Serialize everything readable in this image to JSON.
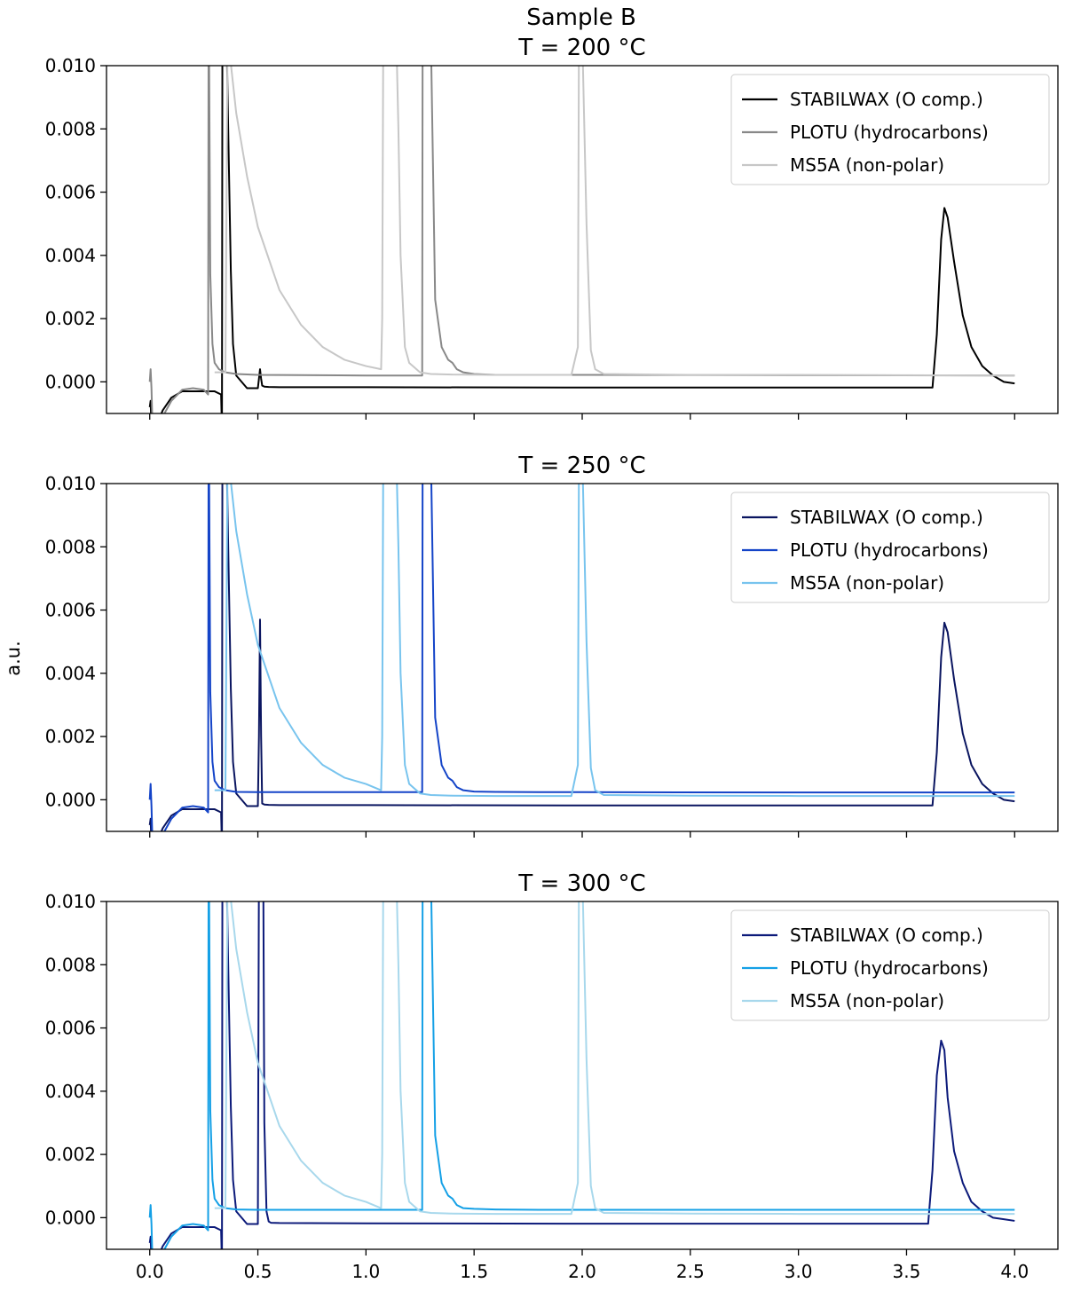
{
  "figure": {
    "suptitle": "Sample B",
    "ylabel": "a.u."
  },
  "chart_data": [
    {
      "type": "line",
      "title": "T = 200 °C",
      "xlim": [
        -0.2,
        4.2
      ],
      "ylim": [
        -0.001,
        0.01
      ],
      "xticks": [
        0.0,
        0.5,
        1.0,
        1.5,
        2.0,
        2.5,
        3.0,
        3.5,
        4.0
      ],
      "xtick_labels": [
        "0.0",
        "0.5",
        "1.0",
        "1.5",
        "2.0",
        "2.5",
        "3.0",
        "3.5",
        "4.0"
      ],
      "yticks": [
        0.0,
        0.002,
        0.004,
        0.006,
        0.008,
        0.01
      ],
      "ytick_labels": [
        "0.000",
        "0.002",
        "0.004",
        "0.006",
        "0.008",
        "0.010"
      ],
      "show_xtick_labels": false,
      "legend_position": "top-right",
      "series": [
        {
          "name": "STABILWAX (O comp.)",
          "color": "#000000",
          "x": [
            0,
            0.004,
            0.008,
            0.03,
            0.06,
            0.1,
            0.15,
            0.2,
            0.25,
            0.3,
            0.33,
            0.334,
            0.336,
            0.34,
            0.345,
            0.355,
            0.365,
            0.375,
            0.385,
            0.4,
            0.45,
            0.5,
            0.505,
            0.51,
            0.515,
            0.52,
            0.53,
            0.55,
            0.6,
            1.0,
            2.0,
            3.0,
            3.6,
            3.62,
            3.64,
            3.66,
            3.675,
            3.69,
            3.72,
            3.76,
            3.8,
            3.85,
            3.9,
            3.95,
            4.0
          ],
          "y": [
            -0.0008,
            -0.0006,
            -0.0015,
            -0.0014,
            -0.0009,
            -0.0005,
            -0.0003,
            -0.0003,
            -0.0003,
            -0.0003,
            -0.0004,
            -0.0015,
            0.011,
            0.011,
            0.011,
            0.011,
            0.0072,
            0.0035,
            0.0012,
            0.0002,
            -0.0002,
            -0.0002,
            0.0001,
            0.0004,
            0.0001,
            -0.00012,
            -0.00015,
            -0.00016,
            -0.00017,
            -0.00017,
            -0.00018,
            -0.00018,
            -0.00018,
            -0.00018,
            0.0015,
            0.0045,
            0.0055,
            0.0052,
            0.0038,
            0.0021,
            0.0011,
            0.0005,
            0.0002,
            0.0,
            -5e-05
          ]
        },
        {
          "name": "PLOTU (hydrocarbons)",
          "color": "#888888",
          "x": [
            0,
            0.004,
            0.008,
            0.012,
            0.03,
            0.06,
            0.1,
            0.15,
            0.2,
            0.25,
            0.27,
            0.272,
            0.274,
            0.28,
            0.29,
            0.3,
            0.32,
            0.35,
            0.4,
            0.5,
            1.0,
            1.26,
            1.262,
            1.264,
            1.27,
            1.3,
            1.32,
            1.35,
            1.38,
            1.4,
            1.41,
            1.42,
            1.45,
            1.5,
            1.6,
            1.8,
            2.0,
            3.0,
            4.0
          ],
          "y": [
            0.0,
            0.0004,
            -0.0002,
            -0.0012,
            -0.0015,
            -0.0011,
            -0.0006,
            -0.00025,
            -0.0002,
            -0.00025,
            -0.0004,
            0.011,
            0.011,
            0.0034,
            0.0012,
            0.0006,
            0.0004,
            0.0003,
            0.00025,
            0.00022,
            0.0002,
            0.0002,
            0.011,
            0.011,
            0.011,
            0.011,
            0.0026,
            0.0011,
            0.0007,
            0.0006,
            0.0005,
            0.0004,
            0.0003,
            0.00025,
            0.00022,
            0.00022,
            0.00022,
            0.00021,
            0.0002
          ]
        },
        {
          "name": "MS5A (non-polar)",
          "color": "#c7c7c7",
          "x": [
            0.3,
            0.35,
            0.36,
            0.4,
            0.45,
            0.5,
            0.6,
            0.7,
            0.8,
            0.9,
            1.0,
            1.07,
            1.075,
            1.08,
            1.09,
            1.1,
            1.13,
            1.14,
            1.15,
            1.16,
            1.18,
            1.2,
            1.25,
            1.3,
            1.4,
            1.6,
            1.8,
            1.95,
            1.98,
            1.985,
            1.995,
            2.0,
            2.02,
            2.04,
            2.06,
            2.1,
            2.5,
            3.0,
            3.5,
            4.0
          ],
          "y": [
            0.0003,
            0.0003,
            0.011,
            0.0085,
            0.0065,
            0.0049,
            0.0029,
            0.0018,
            0.0011,
            0.0007,
            0.0005,
            0.0004,
            0.002,
            0.011,
            0.011,
            0.011,
            0.011,
            0.011,
            0.008,
            0.004,
            0.0011,
            0.0006,
            0.0003,
            0.00025,
            0.00023,
            0.00022,
            0.00022,
            0.00022,
            0.0011,
            0.011,
            0.011,
            0.011,
            0.005,
            0.001,
            0.0004,
            0.00025,
            0.00022,
            0.00022,
            0.00021,
            0.0002
          ]
        }
      ]
    },
    {
      "type": "line",
      "title": "T = 250 °C",
      "xlim": [
        -0.2,
        4.2
      ],
      "ylim": [
        -0.001,
        0.01
      ],
      "xticks": [
        0.0,
        0.5,
        1.0,
        1.5,
        2.0,
        2.5,
        3.0,
        3.5,
        4.0
      ],
      "xtick_labels": [
        "0.0",
        "0.5",
        "1.0",
        "1.5",
        "2.0",
        "2.5",
        "3.0",
        "3.5",
        "4.0"
      ],
      "yticks": [
        0.0,
        0.002,
        0.004,
        0.006,
        0.008,
        0.01
      ],
      "ytick_labels": [
        "0.000",
        "0.002",
        "0.004",
        "0.006",
        "0.008",
        "0.010"
      ],
      "show_xtick_labels": false,
      "legend_position": "top-right",
      "series": [
        {
          "name": "STABILWAX (O comp.)",
          "color": "#0a1560",
          "x": [
            0,
            0.004,
            0.008,
            0.03,
            0.06,
            0.1,
            0.15,
            0.2,
            0.25,
            0.3,
            0.33,
            0.334,
            0.336,
            0.34,
            0.345,
            0.355,
            0.365,
            0.375,
            0.385,
            0.4,
            0.45,
            0.5,
            0.505,
            0.51,
            0.515,
            0.52,
            0.53,
            0.55,
            0.6,
            1.0,
            2.0,
            3.0,
            3.6,
            3.62,
            3.64,
            3.66,
            3.675,
            3.69,
            3.72,
            3.76,
            3.8,
            3.85,
            3.9,
            3.95,
            4.0
          ],
          "y": [
            -0.0008,
            -0.0006,
            -0.0015,
            -0.0014,
            -0.0009,
            -0.0005,
            -0.0003,
            -0.0003,
            -0.0003,
            -0.0003,
            -0.0004,
            -0.0015,
            0.011,
            0.011,
            0.011,
            0.011,
            0.0072,
            0.0035,
            0.0012,
            0.0002,
            -0.0002,
            -0.0002,
            0.002,
            0.0057,
            0.002,
            -0.00012,
            -0.00015,
            -0.00016,
            -0.00017,
            -0.00017,
            -0.00018,
            -0.00018,
            -0.00018,
            -0.00018,
            0.0015,
            0.0045,
            0.0056,
            0.0053,
            0.0038,
            0.0021,
            0.0011,
            0.0005,
            0.0002,
            0.0,
            -5e-05
          ]
        },
        {
          "name": "PLOTU (hydrocarbons)",
          "color": "#1444c8",
          "x": [
            0,
            0.004,
            0.008,
            0.012,
            0.03,
            0.06,
            0.1,
            0.15,
            0.2,
            0.25,
            0.27,
            0.272,
            0.274,
            0.28,
            0.29,
            0.3,
            0.32,
            0.35,
            0.4,
            0.5,
            1.0,
            1.26,
            1.262,
            1.264,
            1.27,
            1.3,
            1.32,
            1.35,
            1.38,
            1.4,
            1.41,
            1.42,
            1.45,
            1.5,
            1.6,
            1.8,
            2.0,
            3.0,
            4.0
          ],
          "y": [
            0.0,
            0.0005,
            -0.0002,
            -0.0012,
            -0.0015,
            -0.0011,
            -0.0006,
            -0.00025,
            -0.0002,
            -0.00025,
            -0.0004,
            0.011,
            0.011,
            0.0034,
            0.0012,
            0.0006,
            0.0004,
            0.0003,
            0.00025,
            0.00024,
            0.00024,
            0.00024,
            0.011,
            0.011,
            0.011,
            0.011,
            0.0026,
            0.0011,
            0.0007,
            0.0006,
            0.0005,
            0.0004,
            0.0003,
            0.00026,
            0.00025,
            0.00024,
            0.00024,
            0.00023,
            0.00023
          ]
        },
        {
          "name": "MS5A (non-polar)",
          "color": "#78c4ee",
          "x": [
            0.3,
            0.35,
            0.36,
            0.4,
            0.45,
            0.5,
            0.6,
            0.7,
            0.8,
            0.9,
            1.0,
            1.07,
            1.075,
            1.08,
            1.09,
            1.1,
            1.13,
            1.14,
            1.15,
            1.16,
            1.18,
            1.2,
            1.25,
            1.3,
            1.4,
            1.6,
            1.8,
            1.95,
            1.98,
            1.985,
            1.995,
            2.0,
            2.02,
            2.04,
            2.06,
            2.1,
            2.5,
            3.0,
            3.5,
            4.0
          ],
          "y": [
            0.0003,
            0.0003,
            0.011,
            0.0085,
            0.0065,
            0.0049,
            0.0029,
            0.0018,
            0.0011,
            0.0007,
            0.0005,
            0.0003,
            0.002,
            0.011,
            0.011,
            0.011,
            0.011,
            0.011,
            0.008,
            0.004,
            0.0011,
            0.0005,
            0.0002,
            0.00015,
            0.00013,
            0.00012,
            0.00012,
            0.00012,
            0.0011,
            0.011,
            0.011,
            0.011,
            0.005,
            0.001,
            0.0003,
            0.00015,
            0.00013,
            0.00012,
            0.00012,
            0.00012
          ]
        }
      ]
    },
    {
      "type": "line",
      "title": "T = 300 °C",
      "xlim": [
        -0.2,
        4.2
      ],
      "ylim": [
        -0.001,
        0.01
      ],
      "xticks": [
        0.0,
        0.5,
        1.0,
        1.5,
        2.0,
        2.5,
        3.0,
        3.5,
        4.0
      ],
      "xtick_labels": [
        "0.0",
        "0.5",
        "1.0",
        "1.5",
        "2.0",
        "2.5",
        "3.0",
        "3.5",
        "4.0"
      ],
      "yticks": [
        0.0,
        0.002,
        0.004,
        0.006,
        0.008,
        0.01
      ],
      "ytick_labels": [
        "0.000",
        "0.002",
        "0.004",
        "0.006",
        "0.008",
        "0.010"
      ],
      "show_xtick_labels": true,
      "legend_position": "top-right",
      "series": [
        {
          "name": "STABILWAX (O comp.)",
          "color": "#0c1a7a",
          "x": [
            0,
            0.004,
            0.008,
            0.03,
            0.06,
            0.1,
            0.15,
            0.2,
            0.25,
            0.3,
            0.33,
            0.334,
            0.336,
            0.34,
            0.345,
            0.355,
            0.365,
            0.375,
            0.385,
            0.4,
            0.45,
            0.5,
            0.505,
            0.51,
            0.52,
            0.525,
            0.53,
            0.54,
            0.55,
            0.56,
            0.6,
            1.0,
            2.0,
            3.0,
            3.6,
            3.62,
            3.64,
            3.66,
            3.675,
            3.69,
            3.72,
            3.76,
            3.8,
            3.85,
            3.9,
            3.95,
            4.0
          ],
          "y": [
            -0.0008,
            -0.0006,
            -0.0015,
            -0.0014,
            -0.0009,
            -0.0005,
            -0.0003,
            -0.0003,
            -0.0003,
            -0.0003,
            -0.0004,
            -0.0015,
            0.011,
            0.011,
            0.011,
            0.011,
            0.0072,
            0.0035,
            0.0012,
            0.0002,
            -0.0002,
            -0.0002,
            0.011,
            0.011,
            0.011,
            0.011,
            0.003,
            0.0002,
            -0.00012,
            -0.00016,
            -0.00017,
            -0.00018,
            -0.00019,
            -0.00019,
            -0.00019,
            0.0015,
            0.0045,
            0.0056,
            0.0053,
            0.0038,
            0.0021,
            0.0011,
            0.0005,
            0.0002,
            0.0,
            -5e-05,
            -0.0001
          ]
        },
        {
          "name": "PLOTU (hydrocarbons)",
          "color": "#14a0e6",
          "x": [
            0,
            0.004,
            0.008,
            0.012,
            0.03,
            0.06,
            0.1,
            0.15,
            0.2,
            0.25,
            0.27,
            0.272,
            0.274,
            0.28,
            0.29,
            0.3,
            0.32,
            0.35,
            0.4,
            0.5,
            1.0,
            1.26,
            1.262,
            1.264,
            1.27,
            1.3,
            1.32,
            1.35,
            1.38,
            1.4,
            1.41,
            1.42,
            1.45,
            1.5,
            1.6,
            1.8,
            2.0,
            3.0,
            4.0
          ],
          "y": [
            0.0,
            0.0004,
            -0.0002,
            -0.0012,
            -0.0015,
            -0.0011,
            -0.0006,
            -0.00025,
            -0.0002,
            -0.00025,
            -0.0004,
            0.011,
            0.011,
            0.0034,
            0.0012,
            0.0006,
            0.0004,
            0.0003,
            0.00026,
            0.00025,
            0.00025,
            0.00025,
            0.011,
            0.011,
            0.011,
            0.011,
            0.0026,
            0.0011,
            0.0007,
            0.0006,
            0.0005,
            0.0004,
            0.0003,
            0.00028,
            0.00026,
            0.00025,
            0.00025,
            0.00025,
            0.00025
          ]
        },
        {
          "name": "MS5A (non-polar)",
          "color": "#a8d8ec",
          "x": [
            0.3,
            0.35,
            0.36,
            0.4,
            0.45,
            0.5,
            0.6,
            0.7,
            0.8,
            0.9,
            1.0,
            1.07,
            1.075,
            1.08,
            1.09,
            1.1,
            1.13,
            1.14,
            1.15,
            1.16,
            1.18,
            1.2,
            1.25,
            1.3,
            1.4,
            1.6,
            1.8,
            1.95,
            1.98,
            1.985,
            1.995,
            2.0,
            2.02,
            2.04,
            2.06,
            2.1,
            2.5,
            3.0,
            3.5,
            4.0
          ],
          "y": [
            0.0003,
            0.0003,
            0.011,
            0.0085,
            0.0065,
            0.0049,
            0.0029,
            0.0018,
            0.0011,
            0.0007,
            0.0005,
            0.0003,
            0.002,
            0.011,
            0.011,
            0.011,
            0.011,
            0.011,
            0.008,
            0.004,
            0.0011,
            0.0005,
            0.0002,
            0.00015,
            0.00013,
            0.00012,
            0.00012,
            0.00012,
            0.0011,
            0.011,
            0.011,
            0.011,
            0.005,
            0.001,
            0.0003,
            0.00015,
            0.00013,
            0.00012,
            0.00012,
            0.00012
          ]
        }
      ]
    }
  ]
}
